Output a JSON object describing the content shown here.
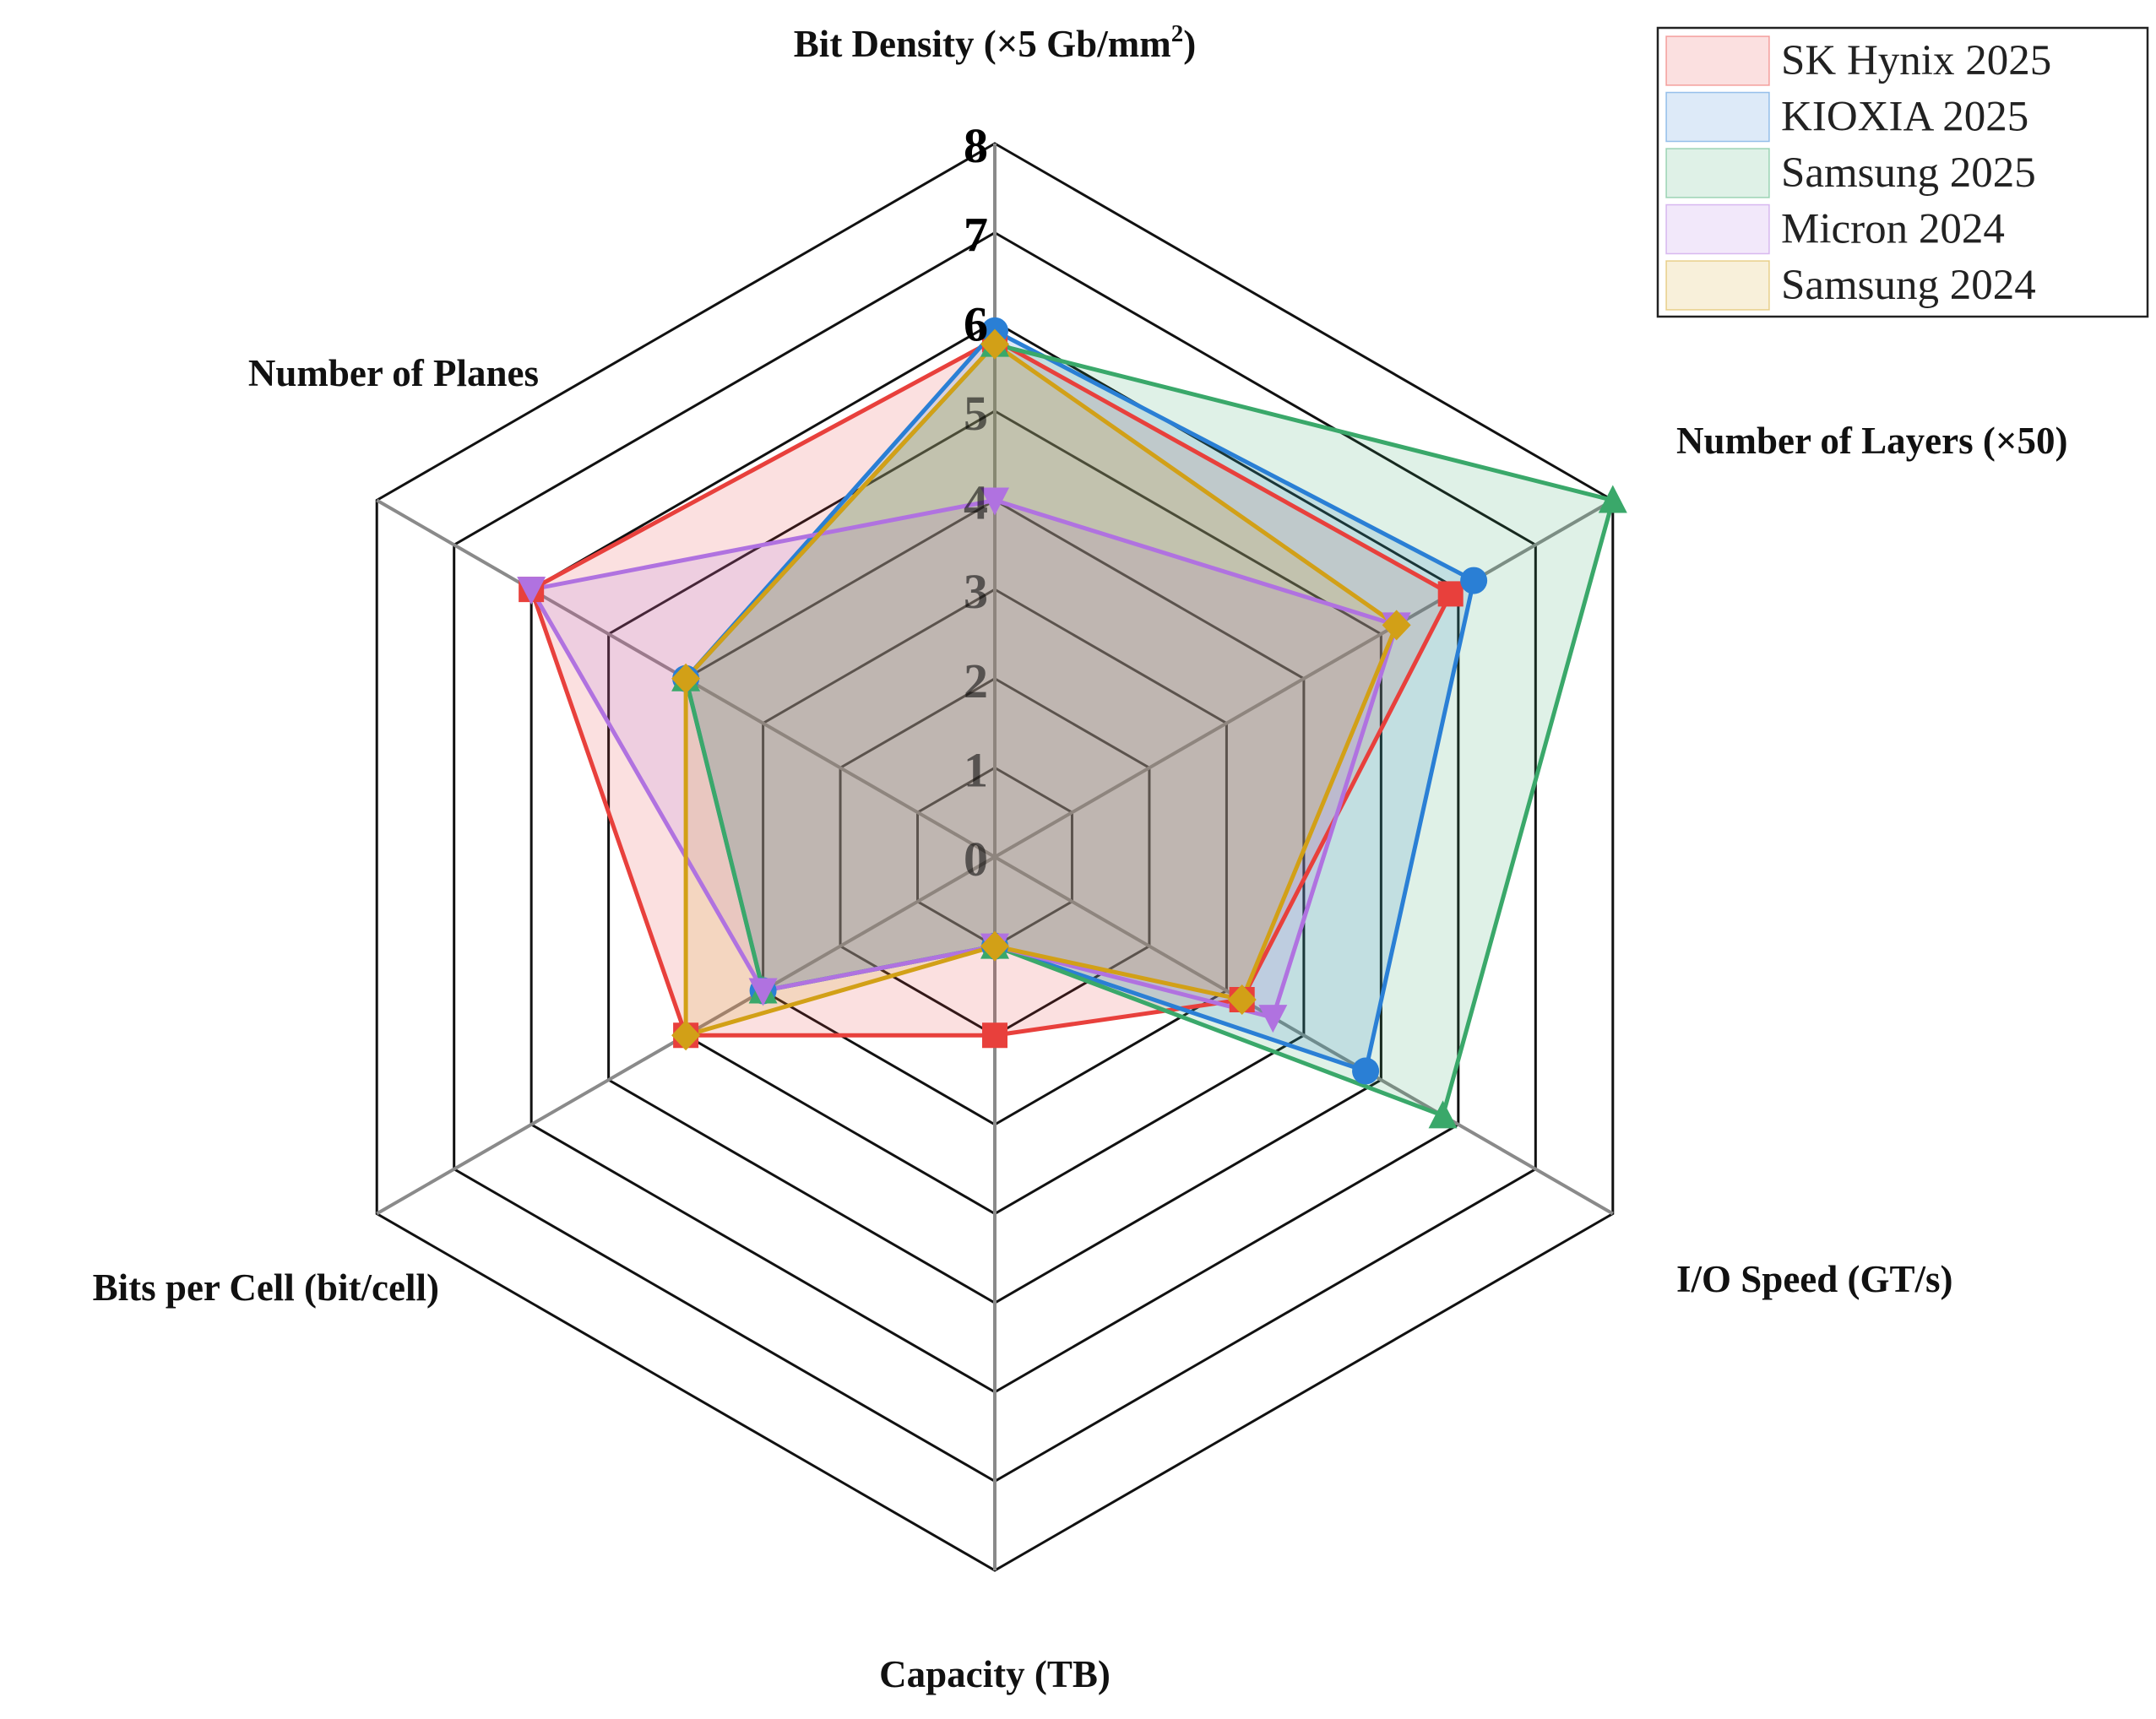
{
  "chart_data": {
    "type": "radar",
    "axes": [
      "Bit Density (×5 Gb/mm²)",
      "Number of Layers (×50)",
      "I/O Speed (GT/s)",
      "Capacity (TB)",
      "Bits per Cell (bit/cell)",
      "Number of Planes"
    ],
    "axis_label_parts": [
      {
        "text": "Bit Density (×5 Gb/mm",
        "sup": "2",
        "tail": ")"
      },
      {
        "text": "Number of Layers (×50)"
      },
      {
        "text": "I/O Speed (GT/s)"
      },
      {
        "text": "Capacity (TB)"
      },
      {
        "text": "Bits per Cell (bit/cell)"
      },
      {
        "text": "Number of Planes"
      }
    ],
    "rmax": 8,
    "ticks": [
      "0",
      "1",
      "2",
      "3",
      "4",
      "5",
      "6",
      "7",
      "8"
    ],
    "ring_values": [
      1,
      2,
      3,
      4,
      5,
      6,
      7,
      8
    ],
    "grid": true,
    "legend_position": "top-right",
    "series": [
      {
        "name": "SK Hynix 2025",
        "color": "#e8403c",
        "marker": "square",
        "values": [
          5.8,
          5.9,
          3.2,
          2.0,
          4.0,
          6.0
        ]
      },
      {
        "name": "KIOXIA 2025",
        "color": "#2a7fd5",
        "marker": "circle",
        "values": [
          5.9,
          6.2,
          4.8,
          1.0,
          3.0,
          4.0
        ]
      },
      {
        "name": "Samsung 2025",
        "color": "#3aa86a",
        "marker": "triangle-up",
        "values": [
          5.75,
          8.0,
          5.8,
          1.0,
          3.0,
          4.0
        ]
      },
      {
        "name": "Micron 2024",
        "color": "#b072e0",
        "marker": "triangle-down",
        "values": [
          4.0,
          5.2,
          3.6,
          1.0,
          3.0,
          6.0
        ]
      },
      {
        "name": "Samsung 2024",
        "color": "#d2a017",
        "marker": "diamond",
        "values": [
          5.75,
          5.2,
          3.2,
          1.0,
          4.0,
          4.0
        ]
      }
    ]
  }
}
